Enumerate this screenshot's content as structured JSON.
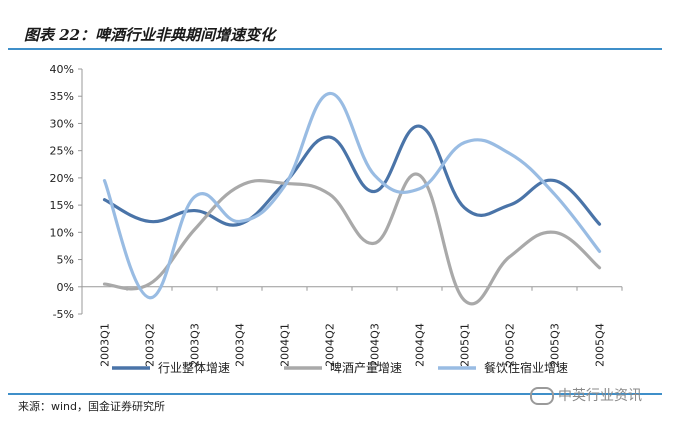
{
  "header": {
    "title": "图表 22：啤酒行业非典期间增速变化"
  },
  "footer": {
    "source": "来源：wind，国金证券研究所",
    "watermark": "中英行业资讯"
  },
  "colors": {
    "rule": "#3f8fc9",
    "series1": "#4a74a8",
    "series2": "#a9a9a9",
    "series3": "#99bce3"
  },
  "chart_data": {
    "type": "line",
    "title": "啤酒行业非典期间增速变化",
    "xlabel": "",
    "ylabel": "",
    "ylim": [
      -5,
      40
    ],
    "yticks": [
      "-5%",
      "0%",
      "5%",
      "10%",
      "15%",
      "20%",
      "25%",
      "30%",
      "35%",
      "40%"
    ],
    "categories": [
      "2003Q1",
      "2003Q2",
      "2003Q3",
      "2003Q4",
      "2004Q1",
      "2004Q2",
      "2004Q3",
      "2004Q4",
      "2005Q1",
      "2005Q2",
      "2005Q3",
      "2005Q4"
    ],
    "legend_position": "bottom",
    "grid": false,
    "series": [
      {
        "name": "行业整体增速",
        "color": "#4a74a8",
        "values": [
          16,
          12,
          14,
          11.5,
          19,
          27.5,
          17.5,
          29.5,
          14.5,
          15,
          19.5,
          11.5
        ]
      },
      {
        "name": "啤酒产量增速",
        "color": "#a9a9a9",
        "values": [
          0.5,
          0.5,
          10.5,
          18.5,
          19,
          17,
          8,
          20.5,
          -2.5,
          5.5,
          10,
          3.5
        ]
      },
      {
        "name": "餐饮住宿业增速",
        "color": "#99bce3",
        "values": [
          19.5,
          -2,
          16.5,
          12,
          18.5,
          35.5,
          20.5,
          18,
          26.5,
          24.5,
          17,
          6.5
        ]
      }
    ]
  }
}
